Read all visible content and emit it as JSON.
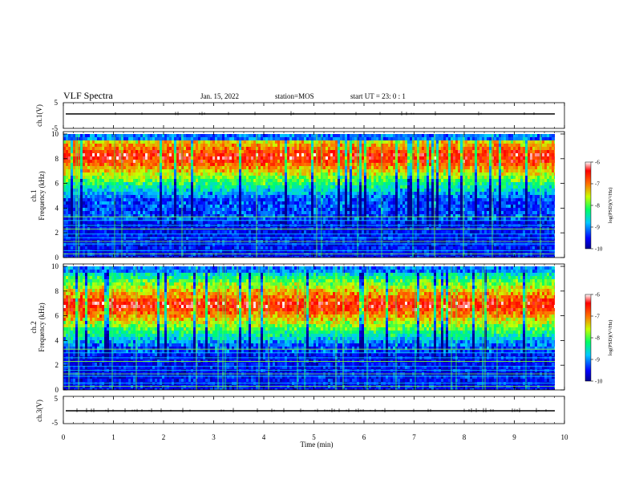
{
  "header": {
    "title": "VLF Spectra",
    "date": "Jan. 15, 2022",
    "station": "station=MOS",
    "start": "start UT =  23: 0  : 1"
  },
  "chart_data": [
    {
      "type": "line",
      "name": "ch1-voltage",
      "ylabel": "ch.1(V)",
      "xlim": [
        0,
        10
      ],
      "ylim": [
        -5,
        5
      ],
      "yticks": [
        "5",
        "-5"
      ],
      "baseline": 0
    },
    {
      "type": "heatmap",
      "name": "ch1-spectrogram",
      "ylabel_top": "ch.1",
      "ylabel": "Frequency (kHz)",
      "xlim": [
        0,
        9.83
      ],
      "ylim": [
        0,
        10
      ],
      "yticks": [
        "0",
        "2",
        "4",
        "6",
        "8",
        "10"
      ],
      "band_center_khz": 8.3,
      "colorbar": {
        "ticks": [
          "-6",
          "-7",
          "-8",
          "-9",
          "-10"
        ],
        "label": "log(PSD)(V²/Hz)",
        "range": [
          -10,
          -6
        ]
      }
    },
    {
      "type": "heatmap",
      "name": "ch2-spectrogram",
      "ylabel_top": "ch.2",
      "ylabel": "Frequency (kHz)",
      "xlim": [
        0,
        9.83
      ],
      "ylim": [
        0,
        10
      ],
      "yticks": [
        "0",
        "2",
        "4",
        "6",
        "8",
        "10"
      ],
      "band_center_khz": 7.0,
      "colorbar": {
        "ticks": [
          "-6",
          "-7",
          "-8",
          "-9",
          "-10"
        ],
        "label": "log(PSD)(V²/Hz)",
        "range": [
          -10,
          -6
        ]
      }
    },
    {
      "type": "line",
      "name": "ch3-voltage",
      "ylabel": "ch.3(V)",
      "xlim": [
        0,
        10
      ],
      "ylim": [
        -5,
        5
      ],
      "yticks": [
        "5",
        "-5"
      ],
      "baseline": 0
    }
  ],
  "xaxis": {
    "label": "Time (min)",
    "ticks": [
      "0",
      "1",
      "2",
      "3",
      "4",
      "5",
      "6",
      "7",
      "8",
      "9",
      "10"
    ],
    "range": [
      0,
      10
    ]
  }
}
